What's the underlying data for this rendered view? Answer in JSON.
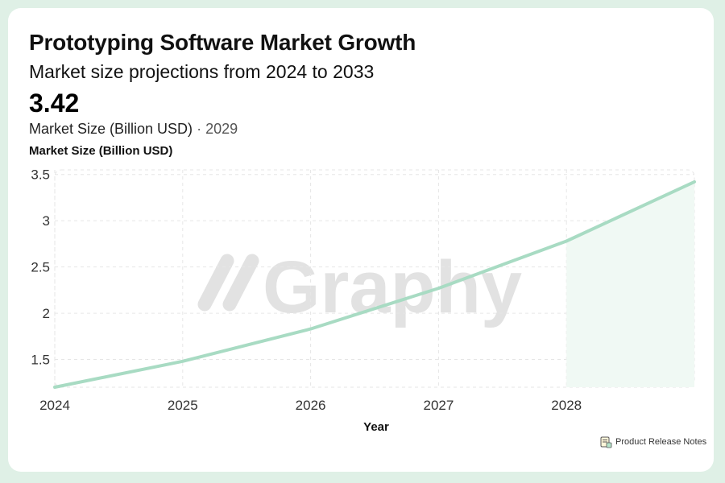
{
  "header": {
    "title": "Prototyping Software Market Growth",
    "subtitle": "Market size projections from 2024 to 2033"
  },
  "kpi": {
    "value": "3.42",
    "label": "Market Size (Billion USD)",
    "separator": "·",
    "year": "2029"
  },
  "watermark": {
    "text": "Graphy"
  },
  "footer": {
    "brand": "Product Release Notes",
    "brand_icon": "document-icon"
  },
  "colors": {
    "page_background": "#dff0e6",
    "line": "#a8dbc3",
    "area_fill": "#f0f9f4",
    "grid": "#e6e6e6",
    "watermark": "#e2e2e2"
  },
  "chart_data": {
    "type": "area",
    "title": "Prototyping Software Market Growth",
    "subtitle": "Market size projections from 2024 to 2033",
    "xlabel": "Year",
    "ylabel": "Market Size (Billion USD)",
    "x": [
      2024,
      2025,
      2026,
      2027,
      2028,
      2029
    ],
    "series": [
      {
        "values": [
          1.2,
          1.48,
          1.83,
          2.27,
          2.78,
          3.42
        ]
      }
    ],
    "x_ticks": [
      "2024",
      "2025",
      "2026",
      "2027",
      "2028"
    ],
    "y_ticks": [
      "1.5",
      "2",
      "2.5",
      "3",
      "3.5"
    ],
    "xlim": [
      2024,
      2029
    ],
    "ylim": [
      1.2,
      3.55
    ],
    "grid": true,
    "grid_style": "dashed",
    "legend": "none"
  }
}
